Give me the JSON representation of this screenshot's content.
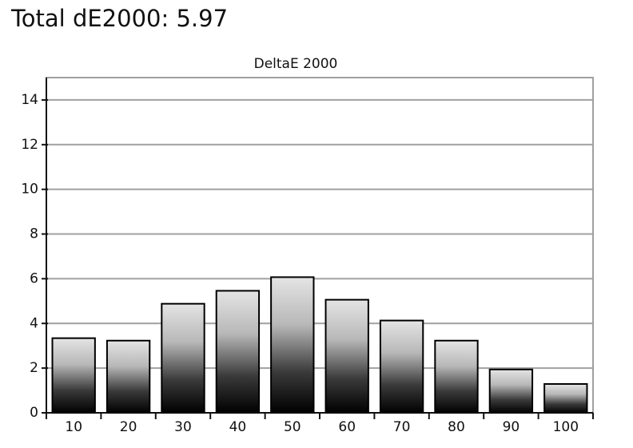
{
  "header": {
    "title": "Total dE2000: 5.97"
  },
  "chart_data": {
    "type": "bar",
    "title": "DeltaE 2000",
    "categories": [
      "10",
      "20",
      "30",
      "40",
      "50",
      "60",
      "70",
      "80",
      "90",
      "100"
    ],
    "values": [
      3.34,
      3.23,
      4.88,
      5.46,
      6.07,
      5.06,
      4.13,
      3.23,
      1.94,
      1.29
    ],
    "ylim": [
      0,
      15
    ],
    "yticks": [
      0,
      2,
      4,
      6,
      8,
      10,
      12,
      14
    ],
    "grid": true
  }
}
